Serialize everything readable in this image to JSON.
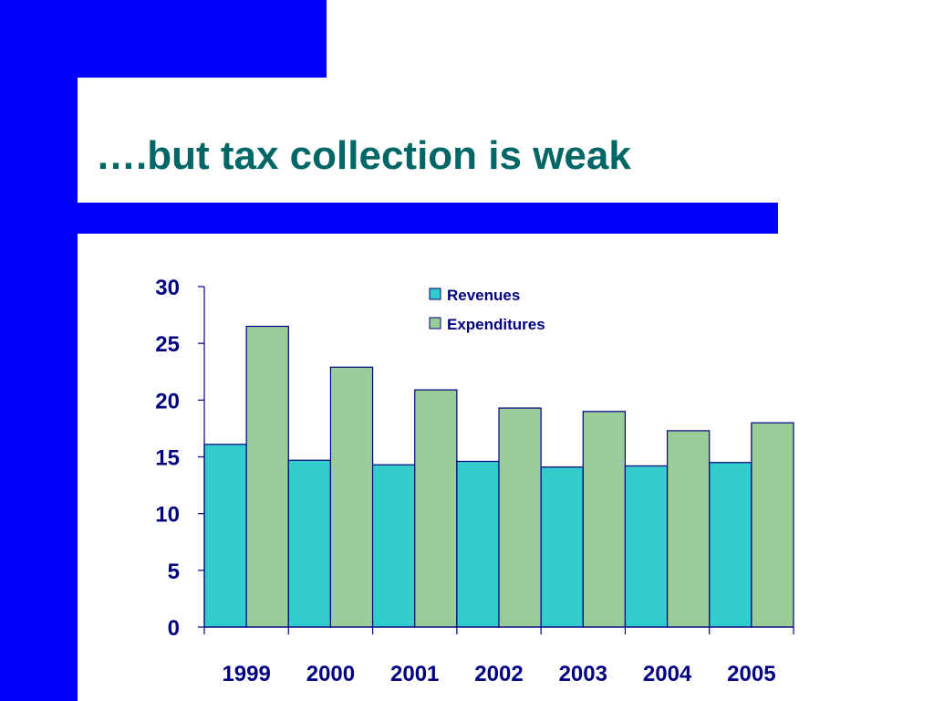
{
  "slide": {
    "title": "….but tax collection is weak"
  },
  "colors": {
    "frame_blue": "#0000ff",
    "title": "#006666",
    "revenues": "#33cccc",
    "expenditures": "#99cc99",
    "axis_text": "#000080"
  },
  "chart_data": {
    "type": "bar",
    "categories": [
      "1999",
      "2000",
      "2001",
      "2002",
      "2003",
      "2004",
      "2005"
    ],
    "series": [
      {
        "name": "Revenues",
        "values": [
          16.1,
          14.7,
          14.3,
          14.6,
          14.1,
          14.2,
          14.5
        ]
      },
      {
        "name": "Expenditures",
        "values": [
          26.5,
          22.9,
          20.9,
          19.3,
          19.0,
          17.3,
          18.0
        ]
      }
    ],
    "ylim": [
      0,
      30
    ],
    "yticks": [
      0,
      5,
      10,
      15,
      20,
      25,
      30
    ],
    "legend_position": "top-right",
    "grid": false
  }
}
